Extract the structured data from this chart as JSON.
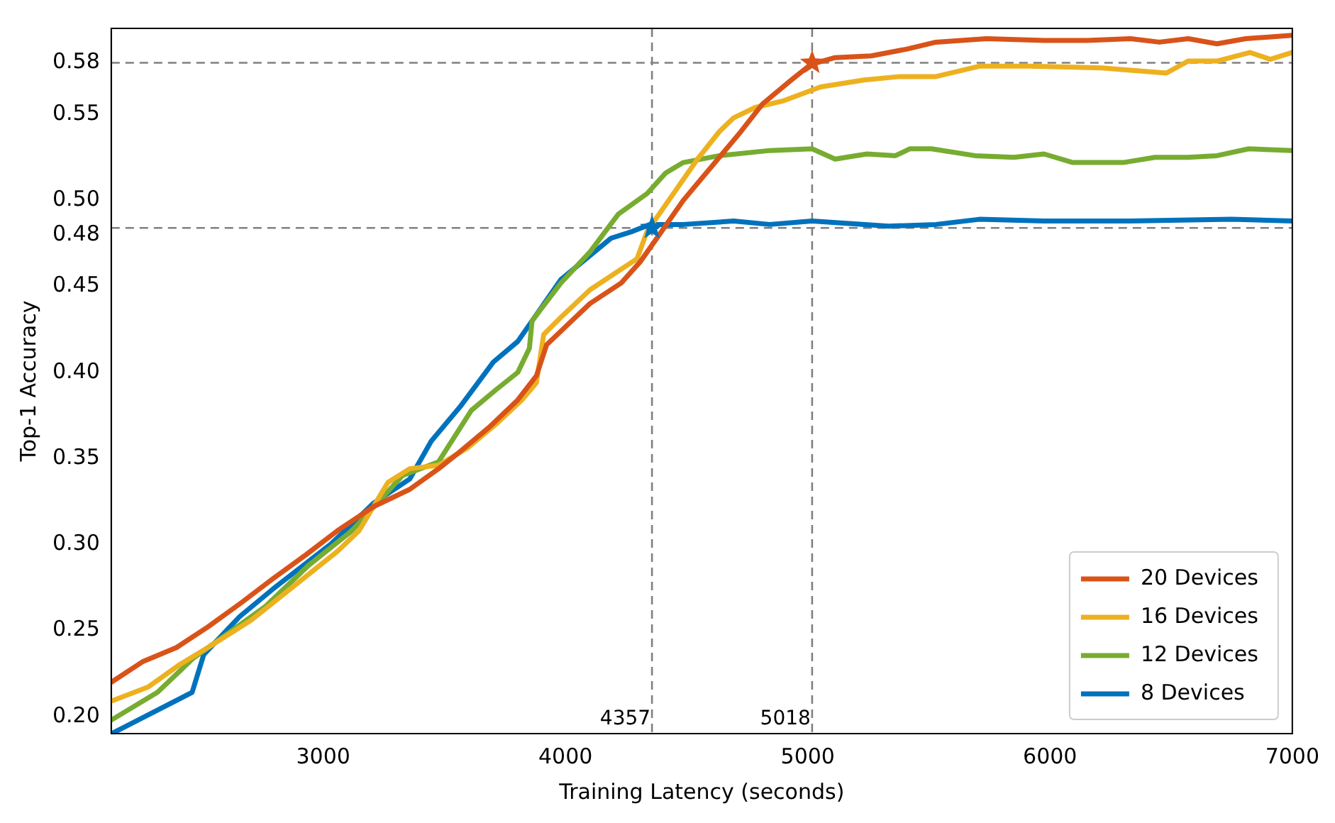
{
  "chart_data": {
    "type": "line",
    "xlabel": "Training Latency (seconds)",
    "ylabel": "Top-1 Accuracy",
    "xlim": [
      2125,
      7000
    ],
    "xticks": [
      {
        "value": 3000,
        "label": "3000"
      },
      {
        "value": 4000,
        "label": "4000"
      },
      {
        "value": 5000,
        "label": "5000"
      },
      {
        "value": 6000,
        "label": "6000"
      },
      {
        "value": 7000,
        "label": "7000"
      }
    ],
    "ylim": [
      0.19,
      0.6
    ],
    "yticks": [
      {
        "value": 0.2,
        "label": "0.20"
      },
      0.25,
      {
        "value": 0.3,
        "label": "0.30"
      },
      0.35,
      {
        "value": 0.4,
        "label": "0.40"
      },
      0.45,
      0.48,
      {
        "value": 0.5,
        "label": "0.50"
      },
      0.55,
      0.58
    ],
    "grid": false,
    "legend": "bottom right",
    "marker": "none",
    "line_style": "solid",
    "series": [
      {
        "name": "20 Devices",
        "color": "#d95319",
        "x": [
          2127,
          2257,
          2394,
          2524,
          2661,
          2792,
          2929,
          3059,
          3208,
          3357,
          3476,
          3565,
          3684,
          3803,
          3880,
          3922,
          4011,
          4101,
          4230,
          4307,
          4367,
          4486,
          4605,
          4724,
          4813,
          4932,
          5012,
          5113,
          5262,
          5410,
          5529,
          5738,
          5975,
          6154,
          6332,
          6451,
          6570,
          6689,
          6808,
          7000
        ],
        "values": [
          0.22,
          0.232,
          0.24,
          0.252,
          0.266,
          0.28,
          0.294,
          0.308,
          0.322,
          0.332,
          0.344,
          0.354,
          0.368,
          0.384,
          0.398,
          0.416,
          0.428,
          0.44,
          0.452,
          0.464,
          0.476,
          0.5,
          0.52,
          0.54,
          0.556,
          0.57,
          0.579,
          0.583,
          0.584,
          0.588,
          0.592,
          0.594,
          0.593,
          0.593,
          0.594,
          0.592,
          0.594,
          0.591,
          0.594,
          0.596
        ]
      },
      {
        "name": "16 Devices",
        "color": "#edb120",
        "x": [
          2127,
          2276,
          2406,
          2524,
          2703,
          2881,
          3059,
          3148,
          3267,
          3357,
          3476,
          3595,
          3714,
          3820,
          3880,
          3910,
          3981,
          4101,
          4230,
          4295,
          4337,
          4426,
          4545,
          4635,
          4694,
          4783,
          4902,
          5053,
          5232,
          5380,
          5529,
          5708,
          5916,
          6213,
          6480,
          6570,
          6689,
          6826,
          6909,
          7000
        ],
        "values": [
          0.209,
          0.217,
          0.23,
          0.24,
          0.256,
          0.276,
          0.296,
          0.308,
          0.336,
          0.344,
          0.346,
          0.356,
          0.37,
          0.384,
          0.394,
          0.422,
          0.432,
          0.448,
          0.46,
          0.466,
          0.482,
          0.5,
          0.524,
          0.54,
          0.548,
          0.554,
          0.558,
          0.566,
          0.57,
          0.572,
          0.572,
          0.578,
          0.578,
          0.577,
          0.574,
          0.581,
          0.581,
          0.586,
          0.582,
          0.586
        ]
      },
      {
        "name": "12 Devices",
        "color": "#77ac30",
        "x": [
          2127,
          2316,
          2465,
          2644,
          2762,
          2941,
          3119,
          3327,
          3476,
          3612,
          3714,
          3803,
          3851,
          3862,
          3981,
          4101,
          4218,
          4337,
          4414,
          4486,
          4635,
          4843,
          5018,
          5113,
          5244,
          5362,
          5422,
          5511,
          5690,
          5851,
          5975,
          6094,
          6302,
          6433,
          6570,
          6689,
          6820,
          7000
        ],
        "values": [
          0.198,
          0.214,
          0.234,
          0.252,
          0.264,
          0.288,
          0.308,
          0.34,
          0.348,
          0.378,
          0.39,
          0.4,
          0.414,
          0.43,
          0.452,
          0.47,
          0.492,
          0.504,
          0.516,
          0.522,
          0.526,
          0.529,
          0.53,
          0.524,
          0.527,
          0.526,
          0.53,
          0.53,
          0.526,
          0.525,
          0.527,
          0.522,
          0.522,
          0.525,
          0.525,
          0.526,
          0.53,
          0.529
        ]
      },
      {
        "name": "8 Devices",
        "color": "#0072bd",
        "x": [
          2127,
          2459,
          2507,
          2655,
          2792,
          3030,
          3208,
          3357,
          3446,
          3565,
          3702,
          3803,
          3981,
          4188,
          4277,
          4349,
          4486,
          4694,
          4843,
          5018,
          5333,
          5529,
          5708,
          5975,
          6332,
          6749,
          7000
        ],
        "values": [
          0.19,
          0.214,
          0.236,
          0.258,
          0.274,
          0.3,
          0.324,
          0.338,
          0.36,
          0.38,
          0.406,
          0.418,
          0.454,
          0.478,
          0.482,
          0.486,
          0.486,
          0.488,
          0.486,
          0.488,
          0.485,
          0.486,
          0.489,
          0.488,
          0.488,
          0.489,
          0.488
        ]
      },
      {
        "type": "scatter",
        "marker": "star",
        "color": "#0072bd",
        "x": [
          4357
        ],
        "values": [
          0.484
        ]
      },
      {
        "type": "scatter",
        "marker": "star",
        "color": "#d95319",
        "x": [
          5018
        ],
        "values": [
          0.58
        ]
      }
    ],
    "ref_lines": [
      {
        "axis": "x",
        "value": 4357,
        "label": "4357",
        "color": "#808080",
        "line_style": "dashed"
      },
      {
        "axis": "x",
        "value": 5018,
        "label": "5018",
        "color": "#808080",
        "line_style": "dashed"
      },
      {
        "axis": "y",
        "value": 0.484,
        "color": "#808080",
        "line_style": "dashed"
      },
      {
        "axis": "y",
        "value": 0.58,
        "color": "#808080",
        "line_style": "dashed"
      }
    ]
  }
}
